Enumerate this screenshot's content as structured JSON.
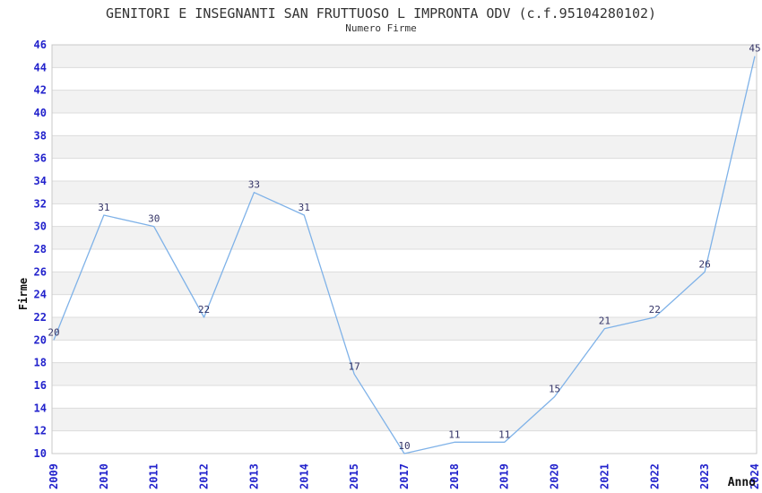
{
  "chart_data": {
    "type": "line",
    "title": "GENITORI E INSEGNANTI SAN FRUTTUOSO L IMPRONTA ODV (c.f.95104280102)",
    "subtitle": "Numero Firme",
    "xlabel": "Anno",
    "ylabel": "Firme",
    "categories": [
      "2009",
      "2010",
      "2011",
      "2012",
      "2013",
      "2014",
      "2015",
      "2017",
      "2018",
      "2019",
      "2020",
      "2021",
      "2022",
      "2023",
      "2024"
    ],
    "values": [
      20,
      31,
      30,
      22,
      33,
      31,
      17,
      10,
      11,
      11,
      15,
      21,
      22,
      26,
      45
    ],
    "ylim": [
      10,
      46
    ],
    "y_tick_step": 2,
    "grid": true,
    "legend_position": "none",
    "colors": {
      "line": "#7FB2E8",
      "tick_label": "#2222CC",
      "data_label": "#333366",
      "band_gray": "#F2F2F2",
      "band_white": "#FFFFFF",
      "gridline": "#DCDCDC",
      "border": "#C8C8C8",
      "title": "#333333",
      "axis_label": "#111111",
      "background": "#FFFFFF"
    }
  }
}
